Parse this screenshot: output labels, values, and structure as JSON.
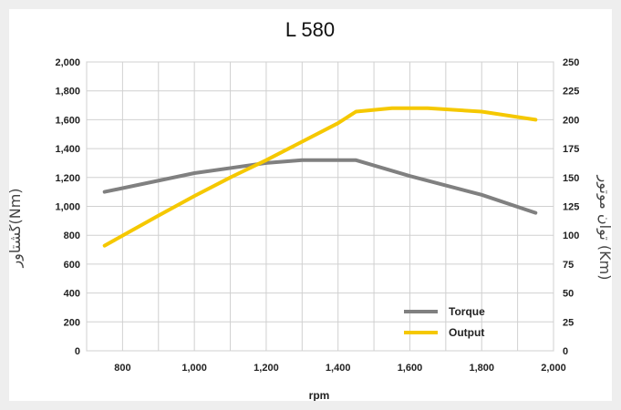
{
  "chart_data": {
    "type": "line",
    "title": "L 580",
    "xlabel": "rpm",
    "ylabel_left": "گشتاور(Nm)",
    "ylabel_right": "توان موتور (Km)",
    "xlim": [
      700,
      2000
    ],
    "ylim_left": [
      0,
      2000
    ],
    "ylim_right": [
      0,
      250
    ],
    "x_ticks": [
      "800",
      "1,000",
      "1,200",
      "1,400",
      "1,600",
      "1,800",
      "2,000"
    ],
    "x_tick_values": [
      800,
      1000,
      1200,
      1400,
      1600,
      1800,
      2000
    ],
    "y_left_ticks": [
      "0",
      "200",
      "400",
      "600",
      "800",
      "1,000",
      "1,200",
      "1,400",
      "1,600",
      "1,800",
      "2,000"
    ],
    "y_left_tick_values": [
      0,
      200,
      400,
      600,
      800,
      1000,
      1200,
      1400,
      1600,
      1800,
      2000
    ],
    "y_right_ticks": [
      "0",
      "25",
      "50",
      "75",
      "100",
      "125",
      "150",
      "175",
      "200",
      "225",
      "250"
    ],
    "y_right_tick_values": [
      0,
      25,
      50,
      75,
      100,
      125,
      150,
      175,
      200,
      225,
      250
    ],
    "grid": true,
    "legend_position": "bottom-right",
    "series": [
      {
        "name": "Torque",
        "axis": "left",
        "color": "#808080",
        "x": [
          750,
          1000,
          1200,
          1300,
          1450,
          1600,
          1800,
          1950
        ],
        "y": [
          1100,
          1230,
          1300,
          1320,
          1320,
          1210,
          1080,
          955
        ]
      },
      {
        "name": "Output",
        "axis": "right",
        "color": "#f5c800",
        "x": [
          750,
          900,
          1000,
          1100,
          1200,
          1300,
          1400,
          1450,
          1550,
          1650,
          1800,
          1950
        ],
        "y": [
          91,
          117,
          134,
          150,
          165,
          181,
          197,
          207,
          210,
          210,
          207,
          200
        ]
      }
    ]
  }
}
